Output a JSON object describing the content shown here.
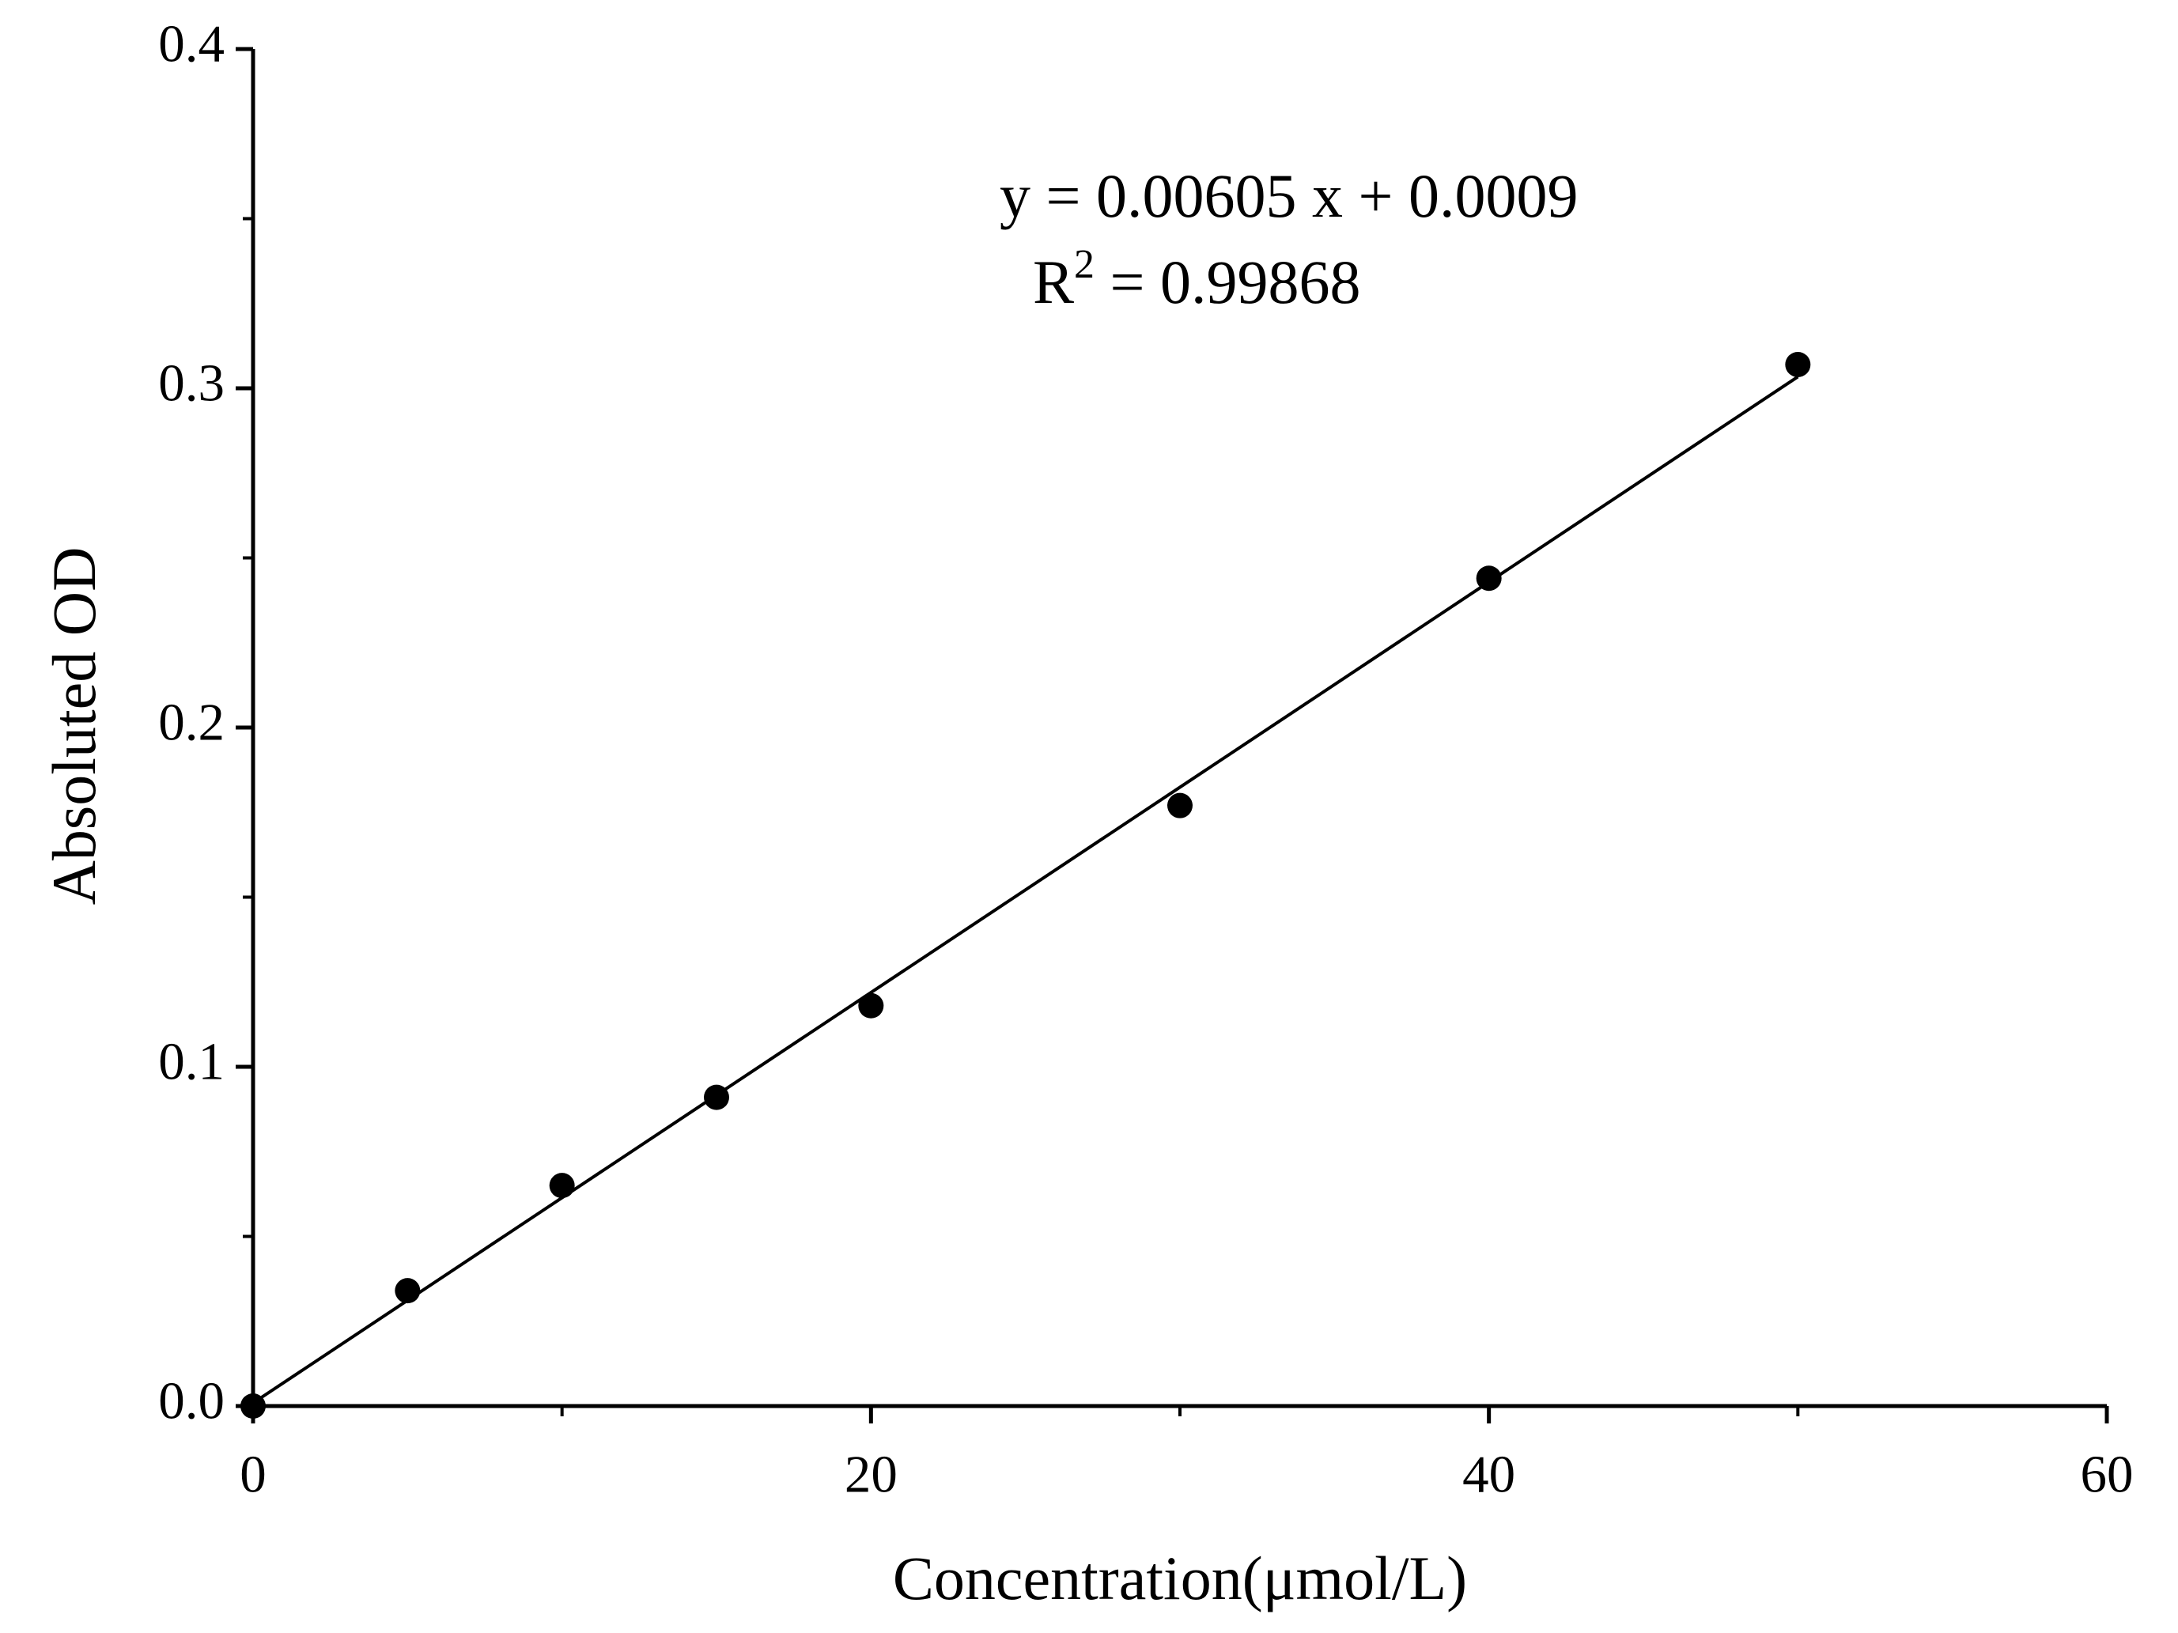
{
  "chart_data": {
    "type": "scatter",
    "xlabel": "Concentration(μmol/L)",
    "ylabel": "Absoluted OD",
    "x": [
      0,
      5,
      10,
      15,
      20,
      30,
      40,
      50
    ],
    "values": [
      0.0,
      0.034,
      0.065,
      0.091,
      0.118,
      0.177,
      0.244,
      0.307
    ],
    "color": "#000000",
    "fit": {
      "slope": 0.00605,
      "intercept": 0.0009
    },
    "annotations": [
      {
        "text": "y = 0.00605 x + 0.0009"
      },
      {
        "text": "R",
        "superscript": "2",
        "suffix": " = 0.99868"
      }
    ],
    "xlim": [
      0,
      60
    ],
    "xticks": [
      0,
      20,
      40,
      60
    ],
    "xminor": [
      10,
      30,
      50
    ],
    "ylim": [
      0,
      0.4
    ],
    "yticks": [
      {
        "value": 0,
        "label": "0.0"
      },
      0.1,
      0.2,
      0.3,
      0.4
    ],
    "yminor": [
      0.05,
      0.15,
      0.25,
      0.35
    ],
    "grid": false
  }
}
